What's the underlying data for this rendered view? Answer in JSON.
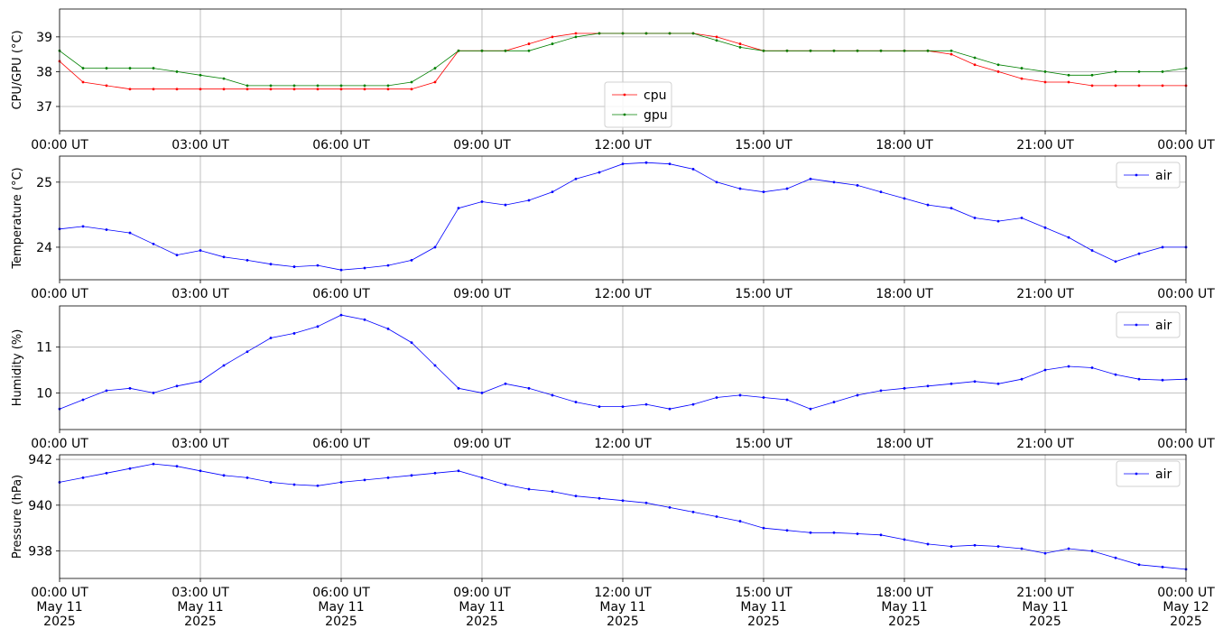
{
  "chart_data": [
    {
      "type": "line",
      "ylabel": "CPU/GPU (°C)",
      "x_range": [
        "2025-05-11T00:00",
        "2025-05-12T00:00"
      ],
      "ylim": [
        36.3,
        39.8
      ],
      "yticks": [
        37,
        38,
        39
      ],
      "ytick_labels": [
        "37",
        "38",
        "39"
      ],
      "xtick_labels": [
        "00:00 UT",
        "03:00 UT",
        "06:00 UT",
        "09:00 UT",
        "12:00 UT",
        "15:00 UT",
        "18:00 UT",
        "21:00 UT",
        "00:00 UT"
      ],
      "grid": true,
      "legend_position": "bottom-center",
      "series": [
        {
          "name": "cpu",
          "color": "#ff0000",
          "x_hours": [
            0,
            0.5,
            1,
            1.5,
            2,
            2.5,
            3,
            3.5,
            4,
            4.5,
            5,
            5.5,
            6,
            6.5,
            7,
            7.5,
            8,
            8.5,
            9,
            9.5,
            10,
            10.5,
            11,
            11.5,
            12,
            12.5,
            13,
            13.5,
            14,
            14.5,
            15,
            15.5,
            16,
            16.5,
            17,
            17.5,
            18,
            18.5,
            19,
            19.5,
            20,
            20.5,
            21,
            21.5,
            22,
            22.5,
            23,
            23.5,
            24
          ],
          "values": [
            38.3,
            37.7,
            37.6,
            37.5,
            37.5,
            37.5,
            37.5,
            37.5,
            37.5,
            37.5,
            37.5,
            37.5,
            37.5,
            37.5,
            37.5,
            37.5,
            37.7,
            38.6,
            38.6,
            38.6,
            38.8,
            39.0,
            39.1,
            39.1,
            39.1,
            39.1,
            39.1,
            39.1,
            39.0,
            38.8,
            38.6,
            38.6,
            38.6,
            38.6,
            38.6,
            38.6,
            38.6,
            38.6,
            38.5,
            38.2,
            38.0,
            37.8,
            37.7,
            37.7,
            37.6,
            37.6,
            37.6,
            37.6,
            37.6
          ]
        },
        {
          "name": "gpu",
          "color": "#008000",
          "x_hours": [
            0,
            0.5,
            1,
            1.5,
            2,
            2.5,
            3,
            3.5,
            4,
            4.5,
            5,
            5.5,
            6,
            6.5,
            7,
            7.5,
            8,
            8.5,
            9,
            9.5,
            10,
            10.5,
            11,
            11.5,
            12,
            12.5,
            13,
            13.5,
            14,
            14.5,
            15,
            15.5,
            16,
            16.5,
            17,
            17.5,
            18,
            18.5,
            19,
            19.5,
            20,
            20.5,
            21,
            21.5,
            22,
            22.5,
            23,
            23.5,
            24
          ],
          "values": [
            38.6,
            38.1,
            38.1,
            38.1,
            38.1,
            38.0,
            37.9,
            37.8,
            37.6,
            37.6,
            37.6,
            37.6,
            37.6,
            37.6,
            37.6,
            37.7,
            38.1,
            38.6,
            38.6,
            38.6,
            38.6,
            38.8,
            39.0,
            39.1,
            39.1,
            39.1,
            39.1,
            39.1,
            38.9,
            38.7,
            38.6,
            38.6,
            38.6,
            38.6,
            38.6,
            38.6,
            38.6,
            38.6,
            38.6,
            38.4,
            38.2,
            38.1,
            38.0,
            37.9,
            37.9,
            38.0,
            38.0,
            38.0,
            38.1
          ]
        }
      ]
    },
    {
      "type": "line",
      "ylabel": "Temperature (°C)",
      "x_range": [
        "2025-05-11T00:00",
        "2025-05-12T00:00"
      ],
      "ylim": [
        23.5,
        25.4
      ],
      "yticks": [
        24,
        25
      ],
      "ytick_labels": [
        "24",
        "25"
      ],
      "xtick_labels": [
        "00:00 UT",
        "03:00 UT",
        "06:00 UT",
        "09:00 UT",
        "12:00 UT",
        "15:00 UT",
        "18:00 UT",
        "21:00 UT",
        "00:00 UT"
      ],
      "grid": true,
      "legend_position": "top-right",
      "series": [
        {
          "name": "air",
          "color": "#0000ff",
          "x_hours": [
            0,
            0.5,
            1,
            1.5,
            2,
            2.5,
            3,
            3.5,
            4,
            4.5,
            5,
            5.5,
            6,
            6.5,
            7,
            7.5,
            8,
            8.5,
            9,
            9.5,
            10,
            10.5,
            11,
            11.5,
            12,
            12.5,
            13,
            13.5,
            14,
            14.5,
            15,
            15.5,
            16,
            16.5,
            17,
            17.5,
            18,
            18.5,
            19,
            19.5,
            20,
            20.5,
            21,
            21.5,
            22,
            22.5,
            23,
            23.5,
            24
          ],
          "values": [
            24.28,
            24.32,
            24.27,
            24.22,
            24.05,
            23.88,
            23.95,
            23.85,
            23.8,
            23.74,
            23.7,
            23.72,
            23.65,
            23.68,
            23.72,
            23.8,
            24.0,
            24.6,
            24.7,
            24.65,
            24.72,
            24.85,
            25.05,
            25.15,
            25.28,
            25.3,
            25.28,
            25.2,
            25.0,
            24.9,
            24.85,
            24.9,
            25.05,
            25.0,
            24.95,
            24.85,
            24.75,
            24.65,
            24.6,
            24.45,
            24.4,
            24.45,
            24.3,
            24.15,
            23.95,
            23.78,
            23.9,
            24.0,
            24.0
          ]
        }
      ]
    },
    {
      "type": "line",
      "ylabel": "Humidity (%)",
      "x_range": [
        "2025-05-11T00:00",
        "2025-05-12T00:00"
      ],
      "ylim": [
        9.2,
        11.9
      ],
      "yticks": [
        10,
        11
      ],
      "ytick_labels": [
        "10",
        "11"
      ],
      "xtick_labels": [
        "00:00 UT",
        "03:00 UT",
        "06:00 UT",
        "09:00 UT",
        "12:00 UT",
        "15:00 UT",
        "18:00 UT",
        "21:00 UT",
        "00:00 UT"
      ],
      "grid": true,
      "legend_position": "top-right",
      "series": [
        {
          "name": "air",
          "color": "#0000ff",
          "x_hours": [
            0,
            0.5,
            1,
            1.5,
            2,
            2.5,
            3,
            3.5,
            4,
            4.5,
            5,
            5.5,
            6,
            6.5,
            7,
            7.5,
            8,
            8.5,
            9,
            9.5,
            10,
            10.5,
            11,
            11.5,
            12,
            12.5,
            13,
            13.5,
            14,
            14.5,
            15,
            15.5,
            16,
            16.5,
            17,
            17.5,
            18,
            18.5,
            19,
            19.5,
            20,
            20.5,
            21,
            21.5,
            22,
            22.5,
            23,
            23.5,
            24
          ],
          "values": [
            9.65,
            9.85,
            10.05,
            10.1,
            10.0,
            10.15,
            10.25,
            10.6,
            10.9,
            11.2,
            11.3,
            11.45,
            11.7,
            11.6,
            11.4,
            11.1,
            10.6,
            10.1,
            10.0,
            10.2,
            10.1,
            9.95,
            9.8,
            9.7,
            9.7,
            9.75,
            9.65,
            9.75,
            9.9,
            9.95,
            9.9,
            9.85,
            9.65,
            9.8,
            9.95,
            10.05,
            10.1,
            10.15,
            10.2,
            10.25,
            10.2,
            10.3,
            10.5,
            10.58,
            10.55,
            10.4,
            10.3,
            10.28,
            10.3
          ]
        }
      ]
    },
    {
      "type": "line",
      "ylabel": "Pressure (hPa)",
      "x_range": [
        "2025-05-11T00:00",
        "2025-05-12T00:00"
      ],
      "ylim": [
        936.8,
        942.2
      ],
      "yticks": [
        938,
        940,
        942
      ],
      "ytick_labels": [
        "938",
        "940",
        "942"
      ],
      "xtick_labels": [
        "00:00 UT\nMay 11\n2025",
        "03:00 UT\nMay 11\n2025",
        "06:00 UT\nMay 11\n2025",
        "09:00 UT\nMay 11\n2025",
        "12:00 UT\nMay 11\n2025",
        "15:00 UT\nMay 11\n2025",
        "18:00 UT\nMay 11\n2025",
        "21:00 UT\nMay 11\n2025",
        "00:00 UT\nMay 12\n2025"
      ],
      "grid": true,
      "legend_position": "top-right",
      "series": [
        {
          "name": "air",
          "color": "#0000ff",
          "x_hours": [
            0,
            0.5,
            1,
            1.5,
            2,
            2.5,
            3,
            3.5,
            4,
            4.5,
            5,
            5.5,
            6,
            6.5,
            7,
            7.5,
            8,
            8.5,
            9,
            9.5,
            10,
            10.5,
            11,
            11.5,
            12,
            12.5,
            13,
            13.5,
            14,
            14.5,
            15,
            15.5,
            16,
            16.5,
            17,
            17.5,
            18,
            18.5,
            19,
            19.5,
            20,
            20.5,
            21,
            21.5,
            22,
            22.5,
            23,
            23.5,
            24
          ],
          "values": [
            941.0,
            941.2,
            941.4,
            941.6,
            941.8,
            941.7,
            941.5,
            941.3,
            941.2,
            941.0,
            940.9,
            940.85,
            941.0,
            941.1,
            941.2,
            941.3,
            941.4,
            941.5,
            941.2,
            940.9,
            940.7,
            940.6,
            940.4,
            940.3,
            940.2,
            940.1,
            939.9,
            939.7,
            939.5,
            939.3,
            939.0,
            938.9,
            938.8,
            938.8,
            938.75,
            938.7,
            938.5,
            938.3,
            938.2,
            938.25,
            938.2,
            938.1,
            937.9,
            938.1,
            938.0,
            937.7,
            937.4,
            937.3,
            937.2
          ]
        }
      ]
    }
  ]
}
